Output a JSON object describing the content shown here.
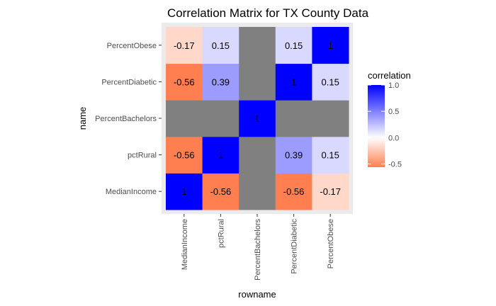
{
  "chart_data": {
    "type": "heatmap",
    "title": "Correlation Matrix for TX County Data",
    "xlabel": "rowname",
    "ylabel": "name",
    "x_categories": [
      "MedianIncome",
      "pctRural",
      "PercentBachelors",
      "PercentDiabetic",
      "PercentObese"
    ],
    "y_categories": [
      "MedianIncome",
      "pctRural",
      "PercentBachelors",
      "PercentDiabetic",
      "PercentObese"
    ],
    "values": [
      [
        1,
        -0.56,
        null,
        -0.56,
        -0.17
      ],
      [
        -0.56,
        1,
        null,
        0.39,
        0.15
      ],
      [
        null,
        null,
        1,
        null,
        null
      ],
      [
        -0.56,
        0.39,
        null,
        1,
        0.15
      ],
      [
        -0.17,
        0.15,
        null,
        0.15,
        1
      ]
    ],
    "labels": [
      [
        "1",
        "-0.56",
        "",
        "-0.56",
        "-0.17"
      ],
      [
        "-0.56",
        "1",
        "",
        "0.39",
        "0.15"
      ],
      [
        "",
        "",
        "1",
        "",
        ""
      ],
      [
        "-0.56",
        "0.39",
        "",
        "1",
        "0.15"
      ],
      [
        "-0.17",
        "0.15",
        "",
        "0.15",
        "1"
      ]
    ],
    "legend": {
      "title": "correlation",
      "ticks": [
        "1.0",
        "0.5",
        "0.0",
        "-0.5"
      ],
      "tick_values": [
        1.0,
        0.5,
        0.0,
        -0.5
      ],
      "range": [
        -0.56,
        1.0
      ]
    },
    "colors": {
      "high": "#0000ff",
      "mid": "#ffffff",
      "low": "#ff7f50",
      "missing": "#808080",
      "panel_background": "#ebebeb"
    },
    "grid": false,
    "legend_position": "right"
  }
}
